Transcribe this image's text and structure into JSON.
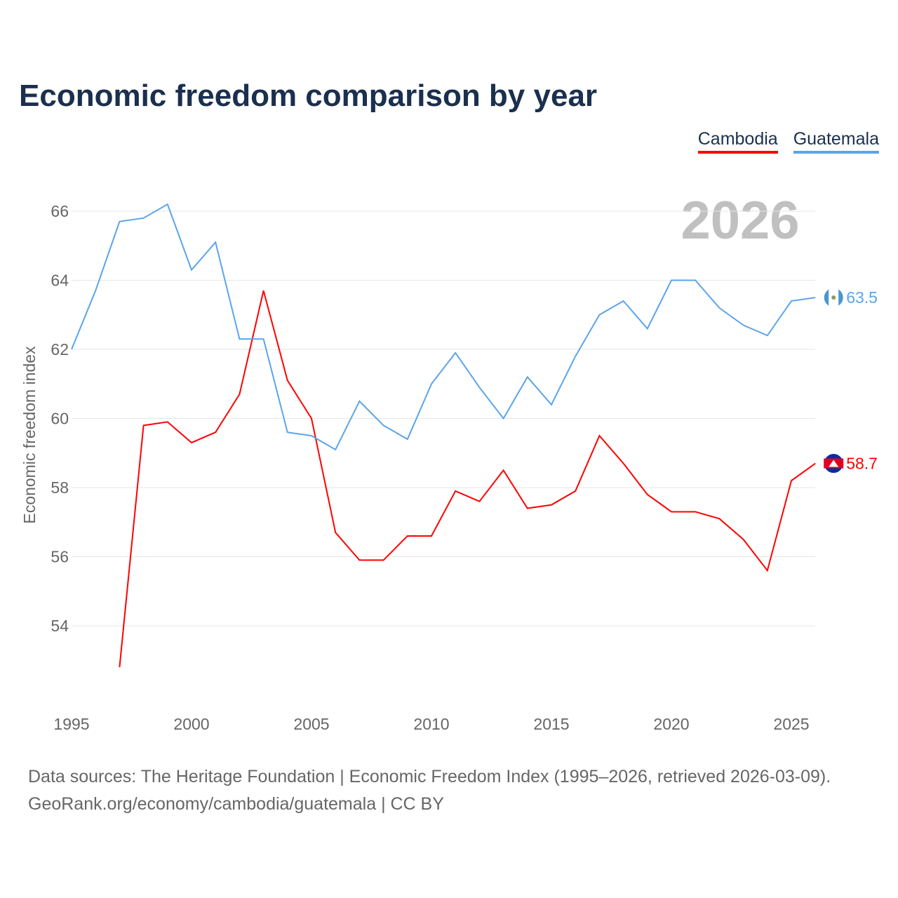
{
  "title": "Economic freedom comparison by year",
  "footer": {
    "line1": "Data sources: The Heritage Foundation | Economic Freedom Index (1995–2026, retrieved 2026-03-09).",
    "line2": "GeoRank.org/economy/cambodia/guatemala | CC BY"
  },
  "chart_data": {
    "type": "line",
    "title": "Economic freedom comparison by year",
    "xlabel": "",
    "ylabel": "Economic freedom index",
    "year_watermark": "2026",
    "xlim": [
      1995,
      2026
    ],
    "ylim": [
      52,
      67
    ],
    "x_ticks": [
      "1995",
      "2000",
      "2005",
      "2010",
      "2015",
      "2020",
      "2025"
    ],
    "y_ticks": [
      "54",
      "56",
      "58",
      "60",
      "62",
      "64",
      "66"
    ],
    "grid": true,
    "legend_position": "top-right",
    "series": [
      {
        "name": "Cambodia",
        "color": "#ff0000",
        "end_label": "58.7",
        "x": [
          1997,
          1998,
          1999,
          2000,
          2001,
          2002,
          2003,
          2004,
          2005,
          2006,
          2007,
          2008,
          2009,
          2010,
          2011,
          2012,
          2013,
          2014,
          2015,
          2016,
          2017,
          2018,
          2019,
          2020,
          2021,
          2022,
          2023,
          2024,
          2025,
          2026
        ],
        "values": [
          52.8,
          59.8,
          59.9,
          59.3,
          59.6,
          60.7,
          63.7,
          61.1,
          60.0,
          56.7,
          55.9,
          55.9,
          56.6,
          56.6,
          57.9,
          57.6,
          58.5,
          57.4,
          57.5,
          57.9,
          59.5,
          58.7,
          57.8,
          57.3,
          57.3,
          57.1,
          56.5,
          55.6,
          58.2,
          58.7
        ]
      },
      {
        "name": "Guatemala",
        "color": "#5ba4ea",
        "end_label": "63.5",
        "x": [
          1995,
          1996,
          1997,
          1998,
          1999,
          2000,
          2001,
          2002,
          2003,
          2004,
          2005,
          2006,
          2007,
          2008,
          2009,
          2010,
          2011,
          2012,
          2013,
          2014,
          2015,
          2016,
          2017,
          2018,
          2019,
          2020,
          2021,
          2022,
          2023,
          2024,
          2025,
          2026
        ],
        "values": [
          62.0,
          63.7,
          65.7,
          65.8,
          66.2,
          64.3,
          65.1,
          62.3,
          62.3,
          59.6,
          59.5,
          59.1,
          60.5,
          59.8,
          59.4,
          61.0,
          61.9,
          60.9,
          60.0,
          61.2,
          60.4,
          61.8,
          63.0,
          63.4,
          62.6,
          64.0,
          64.0,
          63.2,
          62.7,
          62.4,
          63.4,
          63.5
        ]
      }
    ]
  }
}
